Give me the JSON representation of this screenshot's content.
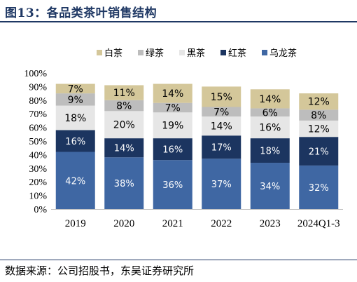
{
  "title": "图13：各品类茶叶销售结构",
  "source": "数据来源：公司招股书，东吴证券研究所",
  "chart_data": {
    "type": "bar",
    "stacked": true,
    "categories": [
      "2019",
      "2020",
      "2021",
      "2022",
      "2023",
      "2024Q1-3"
    ],
    "y_ticks": [
      "0%",
      "10%",
      "20%",
      "30%",
      "40%",
      "50%",
      "60%",
      "70%",
      "80%",
      "90%",
      "100%"
    ],
    "ylim": [
      0,
      100
    ],
    "legend_position": "top",
    "series": [
      {
        "name": "乌龙茶",
        "color": "#3f67a3",
        "values": [
          42,
          38,
          36,
          37,
          34,
          32
        ],
        "labels": [
          "42%",
          "38%",
          "36%",
          "37%",
          "34%",
          "32%"
        ]
      },
      {
        "name": "红茶",
        "color": "#1c3560",
        "values": [
          16,
          14,
          16,
          17,
          18,
          21
        ],
        "labels": [
          "16%",
          "14%",
          "16%",
          "17%",
          "18%",
          "21%"
        ]
      },
      {
        "name": "黑茶",
        "color": "#e6e6e6",
        "values": [
          18,
          20,
          19,
          14,
          16,
          12
        ],
        "labels": [
          "18%",
          "20%",
          "19%",
          "14%",
          "16%",
          "12%"
        ]
      },
      {
        "name": "绿茶",
        "color": "#bdbdbd",
        "values": [
          9,
          8,
          7,
          7,
          6,
          8
        ],
        "labels": [
          "9%",
          "8%",
          "7%",
          "7%",
          "6%",
          "8%"
        ]
      },
      {
        "name": "白茶",
        "color": "#d4c79a",
        "values": [
          7,
          11,
          14,
          15,
          14,
          12
        ],
        "labels": [
          "7%",
          "11%",
          "14%",
          "15%",
          "14%",
          "12%"
        ]
      }
    ],
    "legend_order": [
      "白茶",
      "绿茶",
      "黑茶",
      "红茶",
      "乌龙茶"
    ]
  }
}
